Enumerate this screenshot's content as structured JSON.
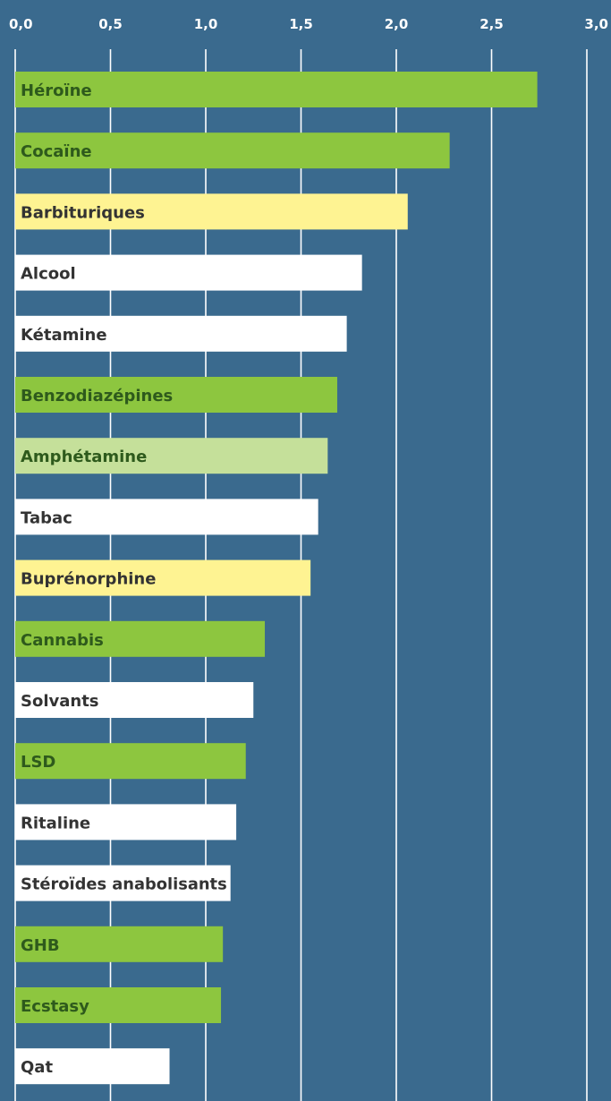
{
  "colors": {
    "background": "#3a6a8e",
    "gridline": "#ffffff",
    "bar_green": "#8dc63f",
    "bar_light_green": "#c5e09a",
    "bar_yellow": "#fef392",
    "bar_white": "#ffffff",
    "label_dark": "#333333",
    "label_on_green": "#2e5a1c"
  },
  "chart_data": {
    "type": "bar",
    "orientation": "horizontal",
    "title": "",
    "xlabel": "",
    "ylabel": "",
    "xlim": [
      0,
      3.0
    ],
    "x_ticks": [
      "0,0",
      "0,5",
      "1,0",
      "1,5",
      "2,0",
      "2,5",
      "3,0"
    ],
    "x_tick_values": [
      0,
      0.5,
      1.0,
      1.5,
      2.0,
      2.5,
      3.0
    ],
    "grid": true,
    "bars": [
      {
        "label": "Héroïne",
        "value": 2.74,
        "color": "bar_green"
      },
      {
        "label": "Cocaïne",
        "value": 2.28,
        "color": "bar_green"
      },
      {
        "label": "Barbituriques",
        "value": 2.06,
        "color": "bar_yellow"
      },
      {
        "label": "Alcool",
        "value": 1.82,
        "color": "bar_white"
      },
      {
        "label": "Kétamine",
        "value": 1.74,
        "color": "bar_white"
      },
      {
        "label": "Benzodiazépines",
        "value": 1.69,
        "color": "bar_green"
      },
      {
        "label": "Amphétamine",
        "value": 1.64,
        "color": "bar_light_green"
      },
      {
        "label": "Tabac",
        "value": 1.59,
        "color": "bar_white"
      },
      {
        "label": "Buprénorphine",
        "value": 1.55,
        "color": "bar_yellow"
      },
      {
        "label": "Cannabis",
        "value": 1.31,
        "color": "bar_green"
      },
      {
        "label": "Solvants",
        "value": 1.25,
        "color": "bar_white"
      },
      {
        "label": "LSD",
        "value": 1.21,
        "color": "bar_green"
      },
      {
        "label": "Ritaline",
        "value": 1.16,
        "color": "bar_white"
      },
      {
        "label": "Stéroïdes anabolisants",
        "value": 1.13,
        "color": "bar_white"
      },
      {
        "label": "GHB",
        "value": 1.09,
        "color": "bar_green"
      },
      {
        "label": "Ecstasy",
        "value": 1.08,
        "color": "bar_green"
      },
      {
        "label": "Qat",
        "value": 0.81,
        "color": "bar_white"
      }
    ]
  }
}
